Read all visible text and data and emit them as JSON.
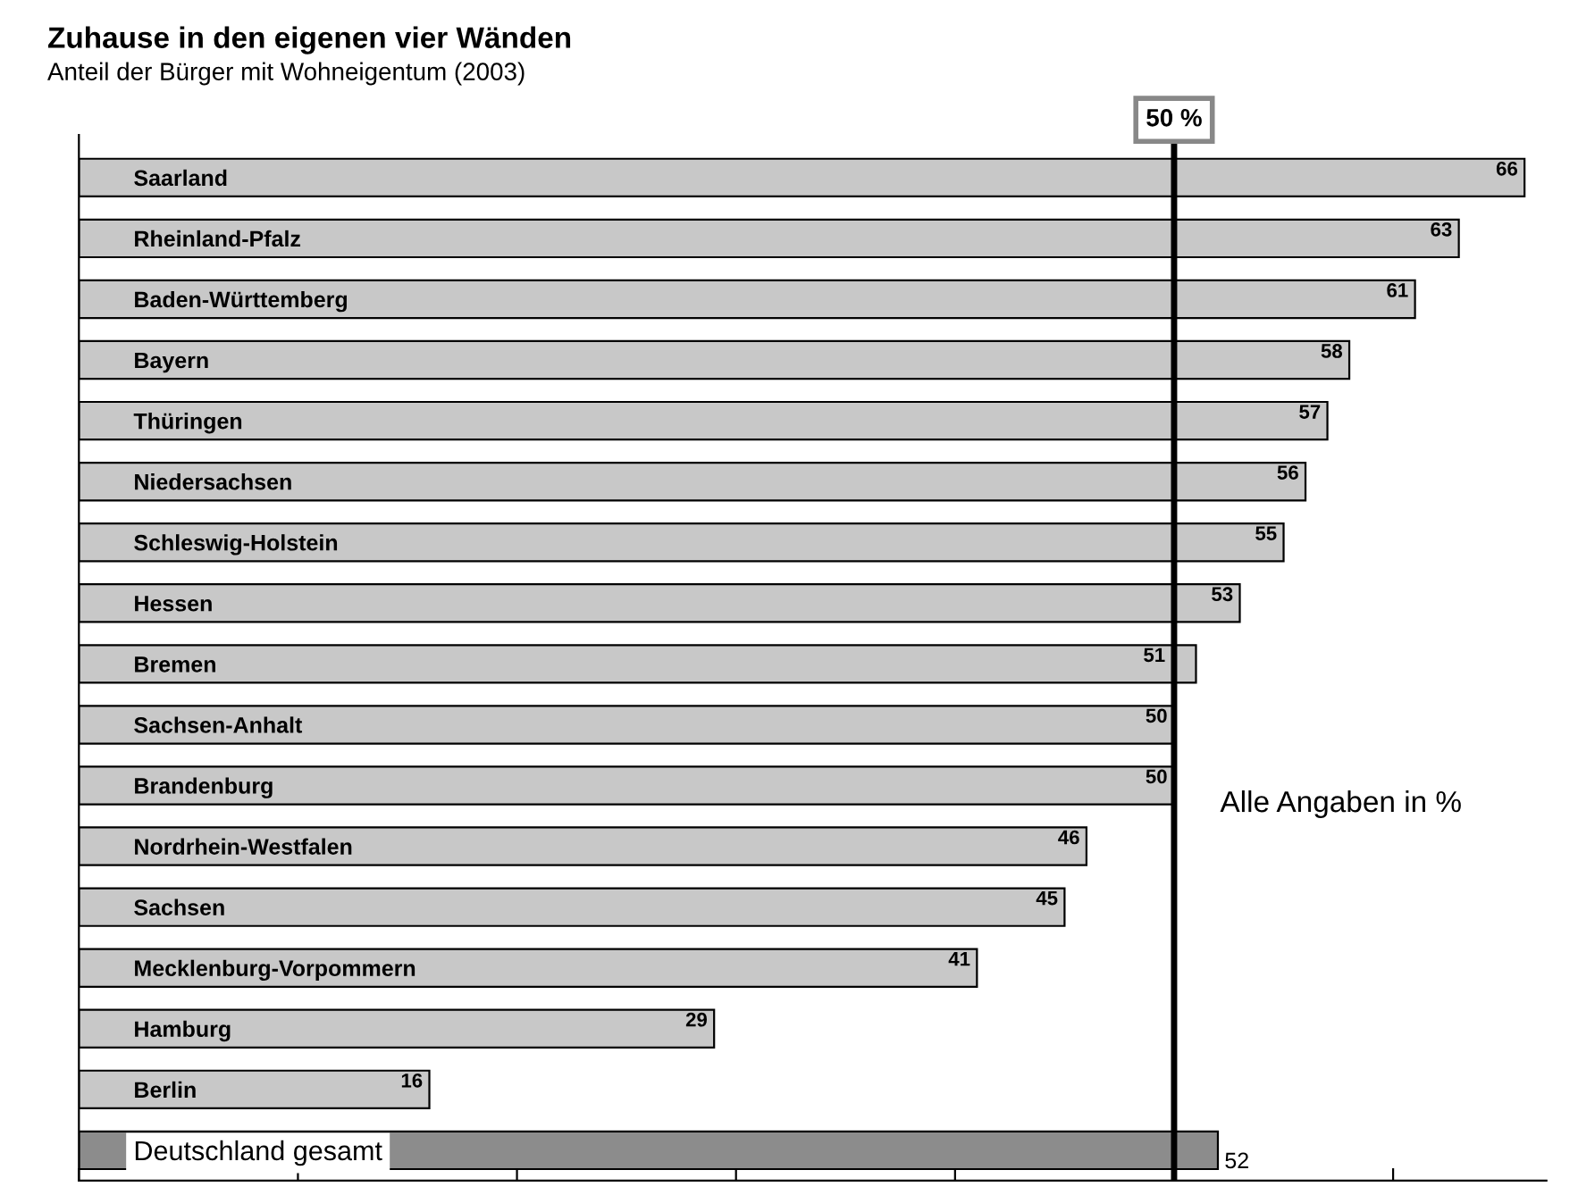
{
  "chart_data": {
    "type": "bar",
    "orientation": "horizontal",
    "title": "Zuhause in den eigenen vier Wänden",
    "subtitle": "Anteil der Bürger mit Wohneigentum (2003)",
    "categories": [
      "Saarland",
      "Rheinland-Pfalz",
      "Baden-Württemberg",
      "Bayern",
      "Thüringen",
      "Niedersachsen",
      "Schleswig-Holstein",
      "Hessen",
      "Bremen",
      "Sachsen-Anhalt",
      "Brandenburg",
      "Nordrhein-Westfalen",
      "Sachsen",
      "Mecklenburg-Vorpommern",
      "Hamburg",
      "Berlin",
      "Deutschland gesamt"
    ],
    "values": [
      66,
      63,
      61,
      58,
      57,
      56,
      55,
      53,
      51,
      50,
      50,
      46,
      45,
      41,
      29,
      16,
      52
    ],
    "colors": [
      "#c8c8c8",
      "#c8c8c8",
      "#c8c8c8",
      "#c8c8c8",
      "#c8c8c8",
      "#c8c8c8",
      "#c8c8c8",
      "#c8c8c8",
      "#c8c8c8",
      "#c8c8c8",
      "#c8c8c8",
      "#c8c8c8",
      "#c8c8c8",
      "#c8c8c8",
      "#c8c8c8",
      "#c8c8c8",
      "#8c8c8c"
    ],
    "data_labels": true,
    "xlim": [
      0,
      67
    ],
    "xticks": [
      {
        "value": 0,
        "label": null
      },
      {
        "value": 10,
        "label": null
      },
      {
        "value": 20,
        "label": null
      },
      {
        "value": 30,
        "label": null
      },
      {
        "value": 40,
        "label": null
      },
      {
        "value": 50,
        "label": null
      },
      {
        "value": 60,
        "label": null
      }
    ],
    "ref_lines": [
      {
        "axis": "x",
        "value": 50,
        "label": "50 %",
        "color": "#000000"
      }
    ],
    "annotations": [
      "Alle Angaben in %"
    ],
    "grid": false,
    "legend": false
  }
}
